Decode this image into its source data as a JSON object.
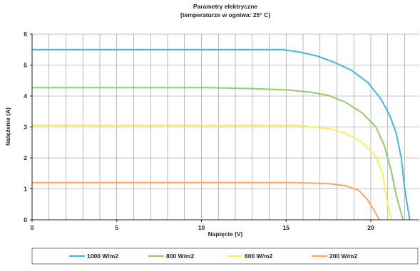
{
  "chart_data": {
    "type": "line",
    "title": "Parametry elektryczne",
    "subtitle": "(temperaturze w ogniwa: 25° C)",
    "xlabel": "Napięcie (V)",
    "ylabel": "Natężenie (A)",
    "xlim": [
      0,
      23
    ],
    "ylim": [
      0,
      6
    ],
    "x_ticks": [
      0,
      5,
      10,
      15,
      20
    ],
    "y_ticks": [
      0,
      1,
      2,
      3,
      4,
      5,
      6
    ],
    "grid": true,
    "legend_position": "bottom",
    "series": [
      {
        "name": "1000 W/m2",
        "color": "#3fb7e0",
        "points": [
          [
            0,
            5.5
          ],
          [
            14.8,
            5.5
          ],
          [
            15.8,
            5.42
          ],
          [
            16.8,
            5.3
          ],
          [
            17.8,
            5.1
          ],
          [
            18.8,
            4.85
          ],
          [
            19.8,
            4.45
          ],
          [
            20.6,
            3.9
          ],
          [
            21.1,
            3.4
          ],
          [
            21.5,
            2.8
          ],
          [
            21.8,
            2.0
          ],
          [
            22.0,
            1.0
          ],
          [
            22.3,
            0.0
          ]
        ]
      },
      {
        "name": "800 W/m2",
        "color": "#90cc6c",
        "points": [
          [
            0,
            4.27
          ],
          [
            10.5,
            4.27
          ],
          [
            13.0,
            4.24
          ],
          [
            15.0,
            4.2
          ],
          [
            16.5,
            4.12
          ],
          [
            17.5,
            4.02
          ],
          [
            18.5,
            3.8
          ],
          [
            19.5,
            3.45
          ],
          [
            20.3,
            3.0
          ],
          [
            20.8,
            2.4
          ],
          [
            21.2,
            1.6
          ],
          [
            21.5,
            0.8
          ],
          [
            21.9,
            0.0
          ]
        ]
      },
      {
        "name": "600 W/m2",
        "color": "#ffee55",
        "points": [
          [
            0,
            3.05
          ],
          [
            15.8,
            3.05
          ],
          [
            16.5,
            3.0
          ],
          [
            17.5,
            2.95
          ],
          [
            18.5,
            2.8
          ],
          [
            19.5,
            2.5
          ],
          [
            20.3,
            2.05
          ],
          [
            20.7,
            1.5
          ],
          [
            20.9,
            0.8
          ],
          [
            21.2,
            0.0
          ]
        ]
      },
      {
        "name": "200 W/m2",
        "color": "#f5a76a",
        "points": [
          [
            0,
            1.2
          ],
          [
            15.5,
            1.2
          ],
          [
            17.5,
            1.17
          ],
          [
            18.5,
            1.1
          ],
          [
            19.3,
            0.95
          ],
          [
            19.8,
            0.65
          ],
          [
            20.2,
            0.3
          ],
          [
            20.5,
            0.0
          ]
        ]
      }
    ]
  }
}
